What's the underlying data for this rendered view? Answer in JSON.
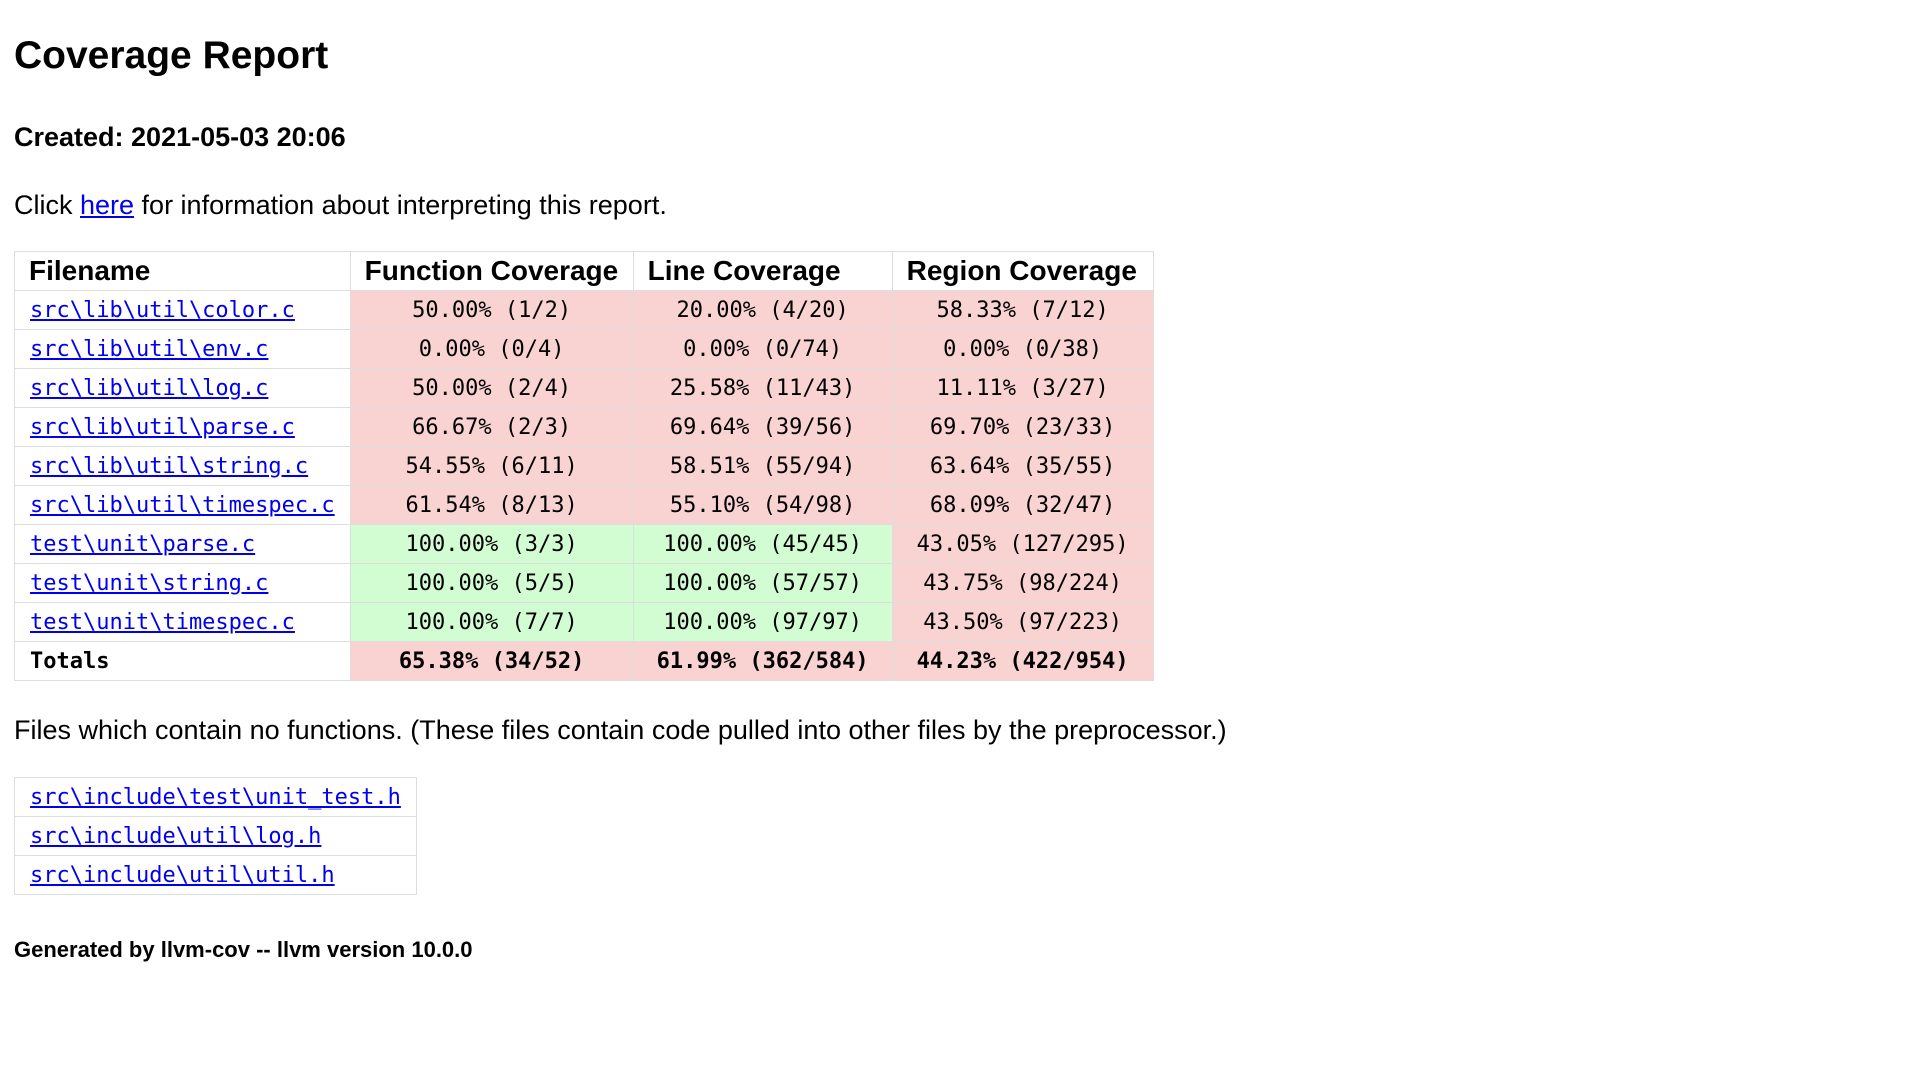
{
  "title": "Coverage Report",
  "created": "Created: 2021-05-03 20:06",
  "intro": {
    "prefix": "Click ",
    "link": "here",
    "suffix": " for information about interpreting this report."
  },
  "table": {
    "headers": [
      "Filename",
      "Function Coverage",
      "Line Coverage",
      "Region Coverage"
    ],
    "rows": [
      {
        "file": "src\\lib\\util\\color.c",
        "func": "50.00% (1/2)",
        "line": "20.00% (4/20)",
        "region": "58.33% (7/12)",
        "func_status": "red",
        "line_status": "red",
        "region_status": "red"
      },
      {
        "file": "src\\lib\\util\\env.c",
        "func": "0.00% (0/4)",
        "line": "0.00% (0/74)",
        "region": "0.00% (0/38)",
        "func_status": "red",
        "line_status": "red",
        "region_status": "red"
      },
      {
        "file": "src\\lib\\util\\log.c",
        "func": "50.00% (2/4)",
        "line": "25.58% (11/43)",
        "region": "11.11% (3/27)",
        "func_status": "red",
        "line_status": "red",
        "region_status": "red"
      },
      {
        "file": "src\\lib\\util\\parse.c",
        "func": "66.67% (2/3)",
        "line": "69.64% (39/56)",
        "region": "69.70% (23/33)",
        "func_status": "red",
        "line_status": "red",
        "region_status": "red"
      },
      {
        "file": "src\\lib\\util\\string.c",
        "func": "54.55% (6/11)",
        "line": "58.51% (55/94)",
        "region": "63.64% (35/55)",
        "func_status": "red",
        "line_status": "red",
        "region_status": "red"
      },
      {
        "file": "src\\lib\\util\\timespec.c",
        "func": "61.54% (8/13)",
        "line": "55.10% (54/98)",
        "region": "68.09% (32/47)",
        "func_status": "red",
        "line_status": "red",
        "region_status": "red"
      },
      {
        "file": "test\\unit\\parse.c",
        "func": "100.00% (3/3)",
        "line": "100.00% (45/45)",
        "region": "43.05% (127/295)",
        "func_status": "green",
        "line_status": "green",
        "region_status": "red"
      },
      {
        "file": "test\\unit\\string.c",
        "func": "100.00% (5/5)",
        "line": "100.00% (57/57)",
        "region": "43.75% (98/224)",
        "func_status": "green",
        "line_status": "green",
        "region_status": "red"
      },
      {
        "file": "test\\unit\\timespec.c",
        "func": "100.00% (7/7)",
        "line": "100.00% (97/97)",
        "region": "43.50% (97/223)",
        "func_status": "green",
        "line_status": "green",
        "region_status": "red"
      }
    ],
    "totals": {
      "label": "Totals",
      "func": "65.38% (34/52)",
      "line": "61.99% (362/584)",
      "region": "44.23% (422/954)"
    }
  },
  "nofunc_text": "Files which contain no functions. (These files contain code pulled into other files by the preprocessor.)",
  "nofunc_files": [
    "src\\include\\test\\unit_test.h",
    "src\\include\\util\\log.h",
    "src\\include\\util\\util.h"
  ],
  "footer": "Generated by llvm-cov -- llvm version 10.0.0",
  "colors": {
    "red": "#f9d2d2",
    "green": "#d2fcd2",
    "link": "#0000ee"
  }
}
